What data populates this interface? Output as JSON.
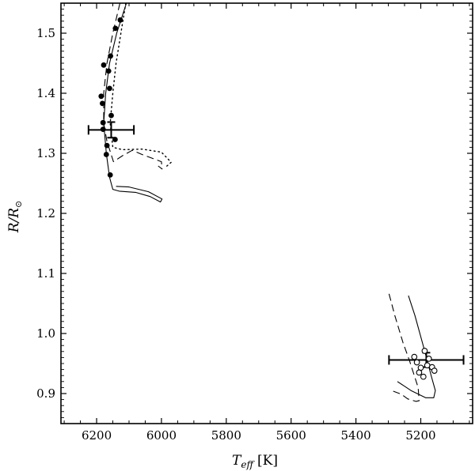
{
  "chart_data": {
    "type": "scatter",
    "x_axis": {
      "label": "T_eff [K]",
      "label_main": "T",
      "label_sub": "eff",
      "label_unit": "[K]",
      "range": [
        6310,
        5040
      ],
      "reversed": true,
      "ticks": [
        6200,
        6000,
        5800,
        5600,
        5400,
        5200
      ],
      "tick_labels": [
        "6200",
        "6000",
        "5800",
        "5600",
        "5400",
        "5200"
      ]
    },
    "y_axis": {
      "label": "R/R☉",
      "label_main": "R/R",
      "label_sub": "⊙",
      "range": [
        0.85,
        1.55
      ],
      "ticks": [
        0.9,
        1.0,
        1.1,
        1.2,
        1.3,
        1.4,
        1.5
      ],
      "tick_labels": [
        "0.9",
        "1.0",
        "1.1",
        "1.2",
        "1.3",
        "1.4",
        "1.5"
      ]
    },
    "grid": false,
    "legend": "none",
    "colors": {
      "ink": "#000000",
      "background": "#ffffff"
    },
    "measurements": [
      {
        "name": "primary",
        "x": 6155,
        "y": 1.339,
        "x_err": 70,
        "y_err": 0.013
      },
      {
        "name": "secondary",
        "x": 5183,
        "y": 0.956,
        "x_err": 115,
        "y_err": 0.012
      }
    ],
    "series": [
      {
        "style": "solid",
        "points": [
          [
            6108,
            1.55
          ],
          [
            6138,
            1.5
          ],
          [
            6160,
            1.45
          ],
          [
            6172,
            1.4
          ],
          [
            6178,
            1.35
          ],
          [
            6170,
            1.3
          ],
          [
            6160,
            1.26
          ],
          [
            6150,
            1.24
          ],
          [
            6130,
            1.237
          ],
          [
            6080,
            1.235
          ],
          [
            6035,
            1.228
          ],
          [
            6003,
            1.219
          ],
          [
            5998,
            1.224
          ],
          [
            6040,
            1.236
          ],
          [
            6100,
            1.244
          ],
          [
            6140,
            1.245
          ]
        ]
      },
      {
        "style": "dashed",
        "points": [
          [
            6128,
            1.55
          ],
          [
            6150,
            1.5
          ],
          [
            6168,
            1.45
          ],
          [
            6178,
            1.4
          ],
          [
            6178,
            1.35
          ],
          [
            6168,
            1.32
          ],
          [
            6148,
            1.286
          ],
          [
            6120,
            1.296
          ],
          [
            6090,
            1.305
          ],
          [
            6060,
            1.298
          ],
          [
            6000,
            1.286
          ],
          [
            5998,
            1.274
          ],
          [
            6010,
            1.279
          ]
        ]
      },
      {
        "style": "dotted",
        "points": [
          [
            6110,
            1.55
          ],
          [
            6125,
            1.5
          ],
          [
            6140,
            1.45
          ],
          [
            6150,
            1.4
          ],
          [
            6158,
            1.35
          ],
          [
            6150,
            1.31
          ],
          [
            6120,
            1.306
          ],
          [
            6060,
            1.307
          ],
          [
            6000,
            1.302
          ],
          [
            5970,
            1.285
          ],
          [
            5985,
            1.278
          ]
        ]
      },
      {
        "style": "solid",
        "points": [
          [
            5238,
            1.063
          ],
          [
            5218,
            1.03
          ],
          [
            5195,
            0.985
          ],
          [
            5180,
            0.955
          ],
          [
            5168,
            0.93
          ],
          [
            5155,
            0.905
          ],
          [
            5160,
            0.893
          ],
          [
            5185,
            0.893
          ],
          [
            5230,
            0.905
          ],
          [
            5272,
            0.92
          ]
        ]
      },
      {
        "style": "dashed",
        "points": [
          [
            5298,
            1.066
          ],
          [
            5280,
            1.03
          ],
          [
            5255,
            0.985
          ],
          [
            5235,
            0.955
          ],
          [
            5220,
            0.93
          ],
          [
            5208,
            0.91
          ],
          [
            5205,
            0.888
          ],
          [
            5215,
            0.887
          ],
          [
            5240,
            0.891
          ],
          [
            5260,
            0.899
          ],
          [
            5285,
            0.904
          ]
        ]
      }
    ],
    "markers_filled": [
      [
        6127,
        1.522
      ],
      [
        6142,
        1.508
      ],
      [
        6157,
        1.462
      ],
      [
        6178,
        1.447
      ],
      [
        6163,
        1.437
      ],
      [
        6160,
        1.408
      ],
      [
        6186,
        1.395
      ],
      [
        6182,
        1.383
      ],
      [
        6155,
        1.363
      ],
      [
        6180,
        1.351
      ],
      [
        6180,
        1.34
      ],
      [
        6143,
        1.323
      ],
      [
        6168,
        1.313
      ],
      [
        6170,
        1.298
      ],
      [
        6158,
        1.264
      ]
    ],
    "markers_open": [
      [
        5188,
        0.971
      ],
      [
        5220,
        0.961
      ],
      [
        5175,
        0.958
      ],
      [
        5212,
        0.952
      ],
      [
        5180,
        0.947
      ],
      [
        5200,
        0.943
      ],
      [
        5165,
        0.944
      ],
      [
        5158,
        0.938
      ],
      [
        5205,
        0.935
      ],
      [
        5192,
        0.928
      ]
    ]
  }
}
